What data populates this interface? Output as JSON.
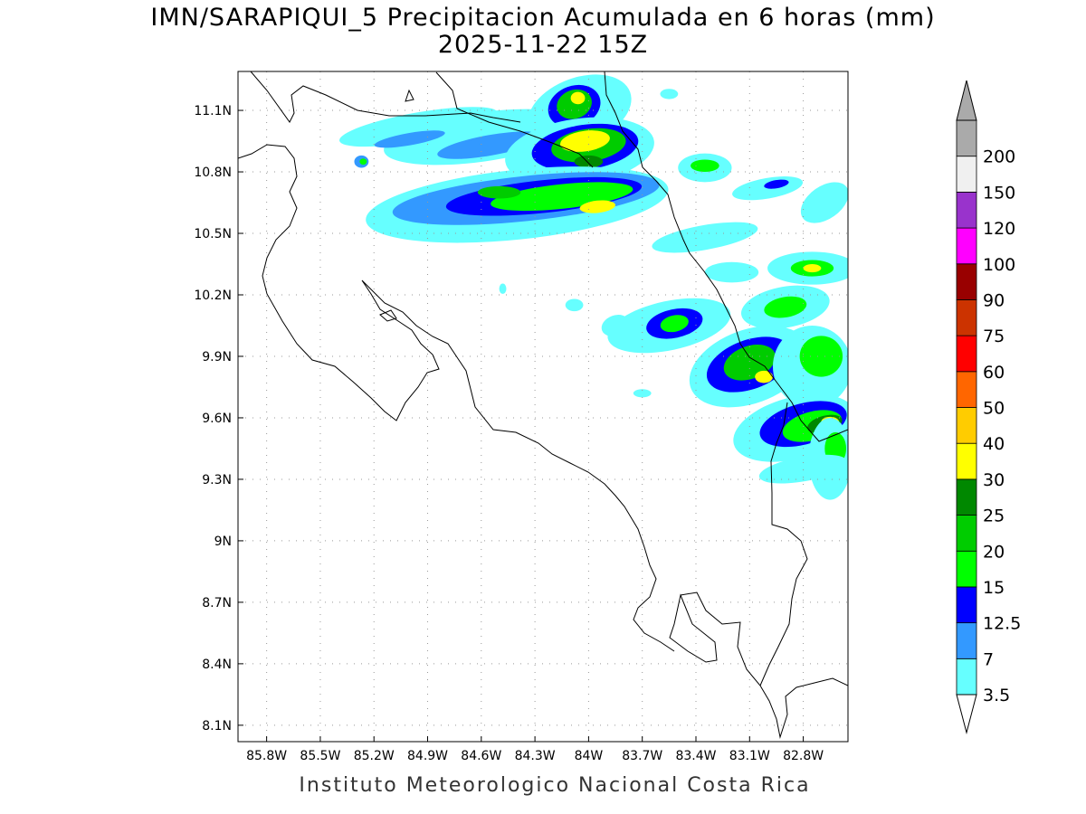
{
  "header": {
    "title": "IMN/SARAPIQUI_5 Precipitacion Acumulada en 6 horas (mm)",
    "subtitle": "2025-11-22 15Z"
  },
  "footer": {
    "credit": "Instituto Meteorologico Nacional Costa Rica"
  },
  "map": {
    "lon_range": [
      -85.96,
      -82.55
    ],
    "lat_range": [
      8.02,
      11.29
    ],
    "lat_ticks": [
      {
        "value": 11.1,
        "label": "11.1N"
      },
      {
        "value": 10.8,
        "label": "10.8N"
      },
      {
        "value": 10.5,
        "label": "10.5N"
      },
      {
        "value": 10.2,
        "label": "10.2N"
      },
      {
        "value": 9.9,
        "label": "9.9N"
      },
      {
        "value": 9.6,
        "label": "9.6N"
      },
      {
        "value": 9.3,
        "label": "9.3N"
      },
      {
        "value": 9.0,
        "label": "9N"
      },
      {
        "value": 8.7,
        "label": "8.7N"
      },
      {
        "value": 8.4,
        "label": "8.4N"
      },
      {
        "value": 8.1,
        "label": "8.1N"
      }
    ],
    "lon_ticks": [
      {
        "value": -85.8,
        "label": "85.8W"
      },
      {
        "value": -85.5,
        "label": "85.5W"
      },
      {
        "value": -85.2,
        "label": "85.2W"
      },
      {
        "value": -84.9,
        "label": "84.9W"
      },
      {
        "value": -84.6,
        "label": "84.6W"
      },
      {
        "value": -84.3,
        "label": "84.3W"
      },
      {
        "value": -84.0,
        "label": "84W"
      },
      {
        "value": -83.7,
        "label": "83.7W"
      },
      {
        "value": -83.4,
        "label": "83.4W"
      },
      {
        "value": -83.1,
        "label": "83.1W"
      },
      {
        "value": -82.8,
        "label": "82.8W"
      }
    ],
    "grid": "dotted"
  },
  "legend": {
    "units": "mm",
    "levels": [
      {
        "label": "3.5",
        "color": "#66ffff"
      },
      {
        "label": "7",
        "color": "#3399ff"
      },
      {
        "label": "12.5",
        "color": "#0000ff"
      },
      {
        "label": "15",
        "color": "#00ff00"
      },
      {
        "label": "20",
        "color": "#00cc00"
      },
      {
        "label": "25",
        "color": "#008800"
      },
      {
        "label": "30",
        "color": "#ffff00"
      },
      {
        "label": "40",
        "color": "#ffcc00"
      },
      {
        "label": "50",
        "color": "#ff6600"
      },
      {
        "label": "60",
        "color": "#ff0000"
      },
      {
        "label": "75",
        "color": "#cc3300"
      },
      {
        "label": "90",
        "color": "#990000"
      },
      {
        "label": "100",
        "color": "#ff00ff"
      },
      {
        "label": "120",
        "color": "#9933cc"
      },
      {
        "label": "150",
        "color": "#f0f0f0"
      },
      {
        "label": "200",
        "color": "#aaaaaa"
      }
    ]
  },
  "precip_blobs": [
    {
      "lon": -84.95,
      "lat": 11.02,
      "rx": 0.45,
      "ry": 0.07,
      "rot": -10,
      "level": 0
    },
    {
      "lon": -84.6,
      "lat": 10.97,
      "rx": 0.55,
      "ry": 0.12,
      "rot": -8,
      "level": 0
    },
    {
      "lon": -84.55,
      "lat": 10.93,
      "rx": 0.3,
      "ry": 0.05,
      "rot": -10,
      "level": 1
    },
    {
      "lon": -85.0,
      "lat": 10.96,
      "rx": 0.2,
      "ry": 0.03,
      "rot": -10,
      "level": 1
    },
    {
      "lon": -85.27,
      "lat": 10.85,
      "rx": 0.04,
      "ry": 0.03,
      "rot": 0,
      "level": 1
    },
    {
      "lon": -85.26,
      "lat": 10.85,
      "rx": 0.02,
      "ry": 0.015,
      "rot": 0,
      "level": 3
    },
    {
      "lon": -84.05,
      "lat": 11.1,
      "rx": 0.3,
      "ry": 0.16,
      "rot": -20,
      "level": 0
    },
    {
      "lon": -84.08,
      "lat": 11.12,
      "rx": 0.15,
      "ry": 0.1,
      "rot": -20,
      "level": 2
    },
    {
      "lon": -84.08,
      "lat": 11.13,
      "rx": 0.1,
      "ry": 0.07,
      "rot": -20,
      "level": 4
    },
    {
      "lon": -84.06,
      "lat": 11.16,
      "rx": 0.04,
      "ry": 0.03,
      "rot": 0,
      "level": 6
    },
    {
      "lon": -83.55,
      "lat": 11.18,
      "rx": 0.05,
      "ry": 0.025,
      "rot": 0,
      "level": 0
    },
    {
      "lon": -84.05,
      "lat": 10.9,
      "rx": 0.42,
      "ry": 0.16,
      "rot": -8,
      "level": 0
    },
    {
      "lon": -84.02,
      "lat": 10.92,
      "rx": 0.3,
      "ry": 0.11,
      "rot": -8,
      "level": 2
    },
    {
      "lon": -84.0,
      "lat": 10.93,
      "rx": 0.21,
      "ry": 0.08,
      "rot": -8,
      "level": 4
    },
    {
      "lon": -84.02,
      "lat": 10.95,
      "rx": 0.14,
      "ry": 0.05,
      "rot": -8,
      "level": 6
    },
    {
      "lon": -84.0,
      "lat": 10.85,
      "rx": 0.08,
      "ry": 0.03,
      "rot": 0,
      "level": 5
    },
    {
      "lon": -84.4,
      "lat": 10.64,
      "rx": 0.85,
      "ry": 0.17,
      "rot": -6,
      "level": 0
    },
    {
      "lon": -84.35,
      "lat": 10.67,
      "rx": 0.75,
      "ry": 0.11,
      "rot": -6,
      "level": 1
    },
    {
      "lon": -84.25,
      "lat": 10.68,
      "rx": 0.55,
      "ry": 0.08,
      "rot": -6,
      "level": 2
    },
    {
      "lon": -84.15,
      "lat": 10.68,
      "rx": 0.4,
      "ry": 0.06,
      "rot": -6,
      "level": 3
    },
    {
      "lon": -83.95,
      "lat": 10.63,
      "rx": 0.1,
      "ry": 0.03,
      "rot": -6,
      "level": 6
    },
    {
      "lon": -84.5,
      "lat": 10.7,
      "rx": 0.12,
      "ry": 0.03,
      "rot": 0,
      "level": 4
    },
    {
      "lon": -83.35,
      "lat": 10.82,
      "rx": 0.15,
      "ry": 0.07,
      "rot": 0,
      "level": 0
    },
    {
      "lon": -83.35,
      "lat": 10.83,
      "rx": 0.08,
      "ry": 0.03,
      "rot": 0,
      "level": 3
    },
    {
      "lon": -83.0,
      "lat": 10.72,
      "rx": 0.2,
      "ry": 0.05,
      "rot": -10,
      "level": 0
    },
    {
      "lon": -82.95,
      "lat": 10.74,
      "rx": 0.07,
      "ry": 0.02,
      "rot": -10,
      "level": 2
    },
    {
      "lon": -82.68,
      "lat": 10.65,
      "rx": 0.15,
      "ry": 0.08,
      "rot": -35,
      "level": 0
    },
    {
      "lon": -83.35,
      "lat": 10.48,
      "rx": 0.3,
      "ry": 0.06,
      "rot": -10,
      "level": 0
    },
    {
      "lon": -83.2,
      "lat": 10.31,
      "rx": 0.15,
      "ry": 0.05,
      "rot": 0,
      "level": 0
    },
    {
      "lon": -82.75,
      "lat": 10.33,
      "rx": 0.25,
      "ry": 0.08,
      "rot": 0,
      "level": 0
    },
    {
      "lon": -82.75,
      "lat": 10.33,
      "rx": 0.12,
      "ry": 0.04,
      "rot": 0,
      "level": 3
    },
    {
      "lon": -82.75,
      "lat": 10.33,
      "rx": 0.05,
      "ry": 0.02,
      "rot": 0,
      "level": 6
    },
    {
      "lon": -83.55,
      "lat": 10.05,
      "rx": 0.35,
      "ry": 0.12,
      "rot": -12,
      "level": 0
    },
    {
      "lon": -83.52,
      "lat": 10.06,
      "rx": 0.16,
      "ry": 0.07,
      "rot": -12,
      "level": 2
    },
    {
      "lon": -83.52,
      "lat": 10.06,
      "rx": 0.08,
      "ry": 0.04,
      "rot": -12,
      "level": 3
    },
    {
      "lon": -82.9,
      "lat": 10.14,
      "rx": 0.25,
      "ry": 0.1,
      "rot": -10,
      "level": 0
    },
    {
      "lon": -82.9,
      "lat": 10.14,
      "rx": 0.12,
      "ry": 0.05,
      "rot": -10,
      "level": 3
    },
    {
      "lon": -83.1,
      "lat": 9.85,
      "rx": 0.35,
      "ry": 0.18,
      "rot": -20,
      "level": 0
    },
    {
      "lon": -83.1,
      "lat": 9.86,
      "rx": 0.25,
      "ry": 0.12,
      "rot": -20,
      "level": 2
    },
    {
      "lon": -83.1,
      "lat": 9.87,
      "rx": 0.15,
      "ry": 0.08,
      "rot": -20,
      "level": 4
    },
    {
      "lon": -83.02,
      "lat": 9.8,
      "rx": 0.05,
      "ry": 0.03,
      "rot": 0,
      "level": 6
    },
    {
      "lon": -82.75,
      "lat": 9.85,
      "rx": 0.22,
      "ry": 0.2,
      "rot": 0,
      "level": 0
    },
    {
      "lon": -82.7,
      "lat": 9.9,
      "rx": 0.12,
      "ry": 0.1,
      "rot": 0,
      "level": 3
    },
    {
      "lon": -82.85,
      "lat": 9.55,
      "rx": 0.35,
      "ry": 0.15,
      "rot": -15,
      "level": 0
    },
    {
      "lon": -82.8,
      "lat": 9.57,
      "rx": 0.25,
      "ry": 0.1,
      "rot": -15,
      "level": 2
    },
    {
      "lon": -82.75,
      "lat": 9.56,
      "rx": 0.17,
      "ry": 0.07,
      "rot": -15,
      "level": 3
    },
    {
      "lon": -82.68,
      "lat": 9.57,
      "rx": 0.1,
      "ry": 0.04,
      "rot": -15,
      "level": 5
    },
    {
      "lon": -82.65,
      "lat": 9.58,
      "rx": 0.05,
      "ry": 0.025,
      "rot": 0,
      "level": 6
    },
    {
      "lon": -82.65,
      "lat": 9.4,
      "rx": 0.12,
      "ry": 0.2,
      "rot": 0,
      "level": 0
    },
    {
      "lon": -82.62,
      "lat": 9.45,
      "rx": 0.06,
      "ry": 0.08,
      "rot": 0,
      "level": 3
    },
    {
      "lon": -82.8,
      "lat": 9.35,
      "rx": 0.25,
      "ry": 0.06,
      "rot": -10,
      "level": 0
    },
    {
      "lon": -84.48,
      "lat": 10.23,
      "rx": 0.02,
      "ry": 0.025,
      "rot": 0,
      "level": 0
    },
    {
      "lon": -84.08,
      "lat": 10.15,
      "rx": 0.05,
      "ry": 0.03,
      "rot": 0,
      "level": 0
    },
    {
      "lon": -83.7,
      "lat": 9.72,
      "rx": 0.05,
      "ry": 0.02,
      "rot": 0,
      "level": 0
    },
    {
      "lon": -83.85,
      "lat": 10.05,
      "rx": 0.08,
      "ry": 0.05,
      "rot": -20,
      "level": 0
    }
  ]
}
